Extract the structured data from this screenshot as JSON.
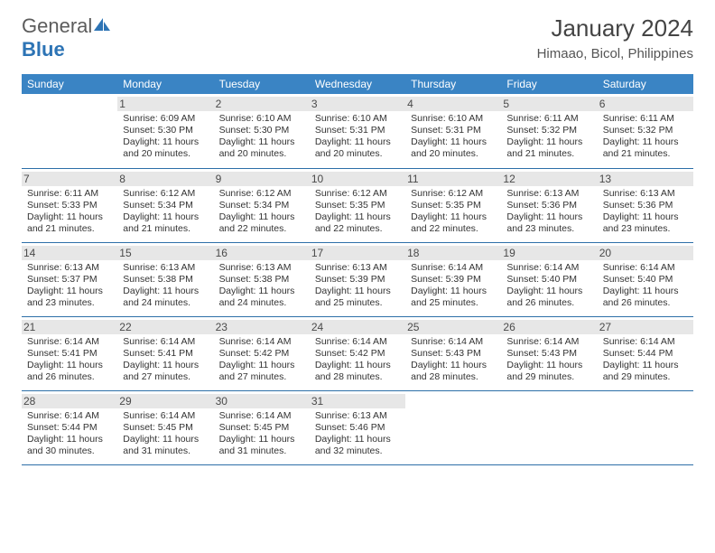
{
  "brand": {
    "word1": "General",
    "word2": "Blue"
  },
  "title": "January 2024",
  "location": "Himaao, Bicol, Philippines",
  "colors": {
    "header_bg": "#3a84c4",
    "header_text": "#ffffff",
    "row_divider": "#2d6fa8",
    "daynum_bg": "#e7e7e7",
    "body_text": "#333333",
    "logo_gray": "#5c5c5c",
    "logo_blue": "#2d74b5"
  },
  "weekdays": [
    "Sunday",
    "Monday",
    "Tuesday",
    "Wednesday",
    "Thursday",
    "Friday",
    "Saturday"
  ],
  "weeks": [
    [
      {
        "n": "",
        "lines": [
          "",
          "",
          "",
          ""
        ]
      },
      {
        "n": "1",
        "lines": [
          "Sunrise: 6:09 AM",
          "Sunset: 5:30 PM",
          "Daylight: 11 hours",
          "and 20 minutes."
        ]
      },
      {
        "n": "2",
        "lines": [
          "Sunrise: 6:10 AM",
          "Sunset: 5:30 PM",
          "Daylight: 11 hours",
          "and 20 minutes."
        ]
      },
      {
        "n": "3",
        "lines": [
          "Sunrise: 6:10 AM",
          "Sunset: 5:31 PM",
          "Daylight: 11 hours",
          "and 20 minutes."
        ]
      },
      {
        "n": "4",
        "lines": [
          "Sunrise: 6:10 AM",
          "Sunset: 5:31 PM",
          "Daylight: 11 hours",
          "and 20 minutes."
        ]
      },
      {
        "n": "5",
        "lines": [
          "Sunrise: 6:11 AM",
          "Sunset: 5:32 PM",
          "Daylight: 11 hours",
          "and 21 minutes."
        ]
      },
      {
        "n": "6",
        "lines": [
          "Sunrise: 6:11 AM",
          "Sunset: 5:32 PM",
          "Daylight: 11 hours",
          "and 21 minutes."
        ]
      }
    ],
    [
      {
        "n": "7",
        "lines": [
          "Sunrise: 6:11 AM",
          "Sunset: 5:33 PM",
          "Daylight: 11 hours",
          "and 21 minutes."
        ]
      },
      {
        "n": "8",
        "lines": [
          "Sunrise: 6:12 AM",
          "Sunset: 5:34 PM",
          "Daylight: 11 hours",
          "and 21 minutes."
        ]
      },
      {
        "n": "9",
        "lines": [
          "Sunrise: 6:12 AM",
          "Sunset: 5:34 PM",
          "Daylight: 11 hours",
          "and 22 minutes."
        ]
      },
      {
        "n": "10",
        "lines": [
          "Sunrise: 6:12 AM",
          "Sunset: 5:35 PM",
          "Daylight: 11 hours",
          "and 22 minutes."
        ]
      },
      {
        "n": "11",
        "lines": [
          "Sunrise: 6:12 AM",
          "Sunset: 5:35 PM",
          "Daylight: 11 hours",
          "and 22 minutes."
        ]
      },
      {
        "n": "12",
        "lines": [
          "Sunrise: 6:13 AM",
          "Sunset: 5:36 PM",
          "Daylight: 11 hours",
          "and 23 minutes."
        ]
      },
      {
        "n": "13",
        "lines": [
          "Sunrise: 6:13 AM",
          "Sunset: 5:36 PM",
          "Daylight: 11 hours",
          "and 23 minutes."
        ]
      }
    ],
    [
      {
        "n": "14",
        "lines": [
          "Sunrise: 6:13 AM",
          "Sunset: 5:37 PM",
          "Daylight: 11 hours",
          "and 23 minutes."
        ]
      },
      {
        "n": "15",
        "lines": [
          "Sunrise: 6:13 AM",
          "Sunset: 5:38 PM",
          "Daylight: 11 hours",
          "and 24 minutes."
        ]
      },
      {
        "n": "16",
        "lines": [
          "Sunrise: 6:13 AM",
          "Sunset: 5:38 PM",
          "Daylight: 11 hours",
          "and 24 minutes."
        ]
      },
      {
        "n": "17",
        "lines": [
          "Sunrise: 6:13 AM",
          "Sunset: 5:39 PM",
          "Daylight: 11 hours",
          "and 25 minutes."
        ]
      },
      {
        "n": "18",
        "lines": [
          "Sunrise: 6:14 AM",
          "Sunset: 5:39 PM",
          "Daylight: 11 hours",
          "and 25 minutes."
        ]
      },
      {
        "n": "19",
        "lines": [
          "Sunrise: 6:14 AM",
          "Sunset: 5:40 PM",
          "Daylight: 11 hours",
          "and 26 minutes."
        ]
      },
      {
        "n": "20",
        "lines": [
          "Sunrise: 6:14 AM",
          "Sunset: 5:40 PM",
          "Daylight: 11 hours",
          "and 26 minutes."
        ]
      }
    ],
    [
      {
        "n": "21",
        "lines": [
          "Sunrise: 6:14 AM",
          "Sunset: 5:41 PM",
          "Daylight: 11 hours",
          "and 26 minutes."
        ]
      },
      {
        "n": "22",
        "lines": [
          "Sunrise: 6:14 AM",
          "Sunset: 5:41 PM",
          "Daylight: 11 hours",
          "and 27 minutes."
        ]
      },
      {
        "n": "23",
        "lines": [
          "Sunrise: 6:14 AM",
          "Sunset: 5:42 PM",
          "Daylight: 11 hours",
          "and 27 minutes."
        ]
      },
      {
        "n": "24",
        "lines": [
          "Sunrise: 6:14 AM",
          "Sunset: 5:42 PM",
          "Daylight: 11 hours",
          "and 28 minutes."
        ]
      },
      {
        "n": "25",
        "lines": [
          "Sunrise: 6:14 AM",
          "Sunset: 5:43 PM",
          "Daylight: 11 hours",
          "and 28 minutes."
        ]
      },
      {
        "n": "26",
        "lines": [
          "Sunrise: 6:14 AM",
          "Sunset: 5:43 PM",
          "Daylight: 11 hours",
          "and 29 minutes."
        ]
      },
      {
        "n": "27",
        "lines": [
          "Sunrise: 6:14 AM",
          "Sunset: 5:44 PM",
          "Daylight: 11 hours",
          "and 29 minutes."
        ]
      }
    ],
    [
      {
        "n": "28",
        "lines": [
          "Sunrise: 6:14 AM",
          "Sunset: 5:44 PM",
          "Daylight: 11 hours",
          "and 30 minutes."
        ]
      },
      {
        "n": "29",
        "lines": [
          "Sunrise: 6:14 AM",
          "Sunset: 5:45 PM",
          "Daylight: 11 hours",
          "and 31 minutes."
        ]
      },
      {
        "n": "30",
        "lines": [
          "Sunrise: 6:14 AM",
          "Sunset: 5:45 PM",
          "Daylight: 11 hours",
          "and 31 minutes."
        ]
      },
      {
        "n": "31",
        "lines": [
          "Sunrise: 6:13 AM",
          "Sunset: 5:46 PM",
          "Daylight: 11 hours",
          "and 32 minutes."
        ]
      },
      {
        "n": "",
        "lines": [
          "",
          "",
          "",
          ""
        ]
      },
      {
        "n": "",
        "lines": [
          "",
          "",
          "",
          ""
        ]
      },
      {
        "n": "",
        "lines": [
          "",
          "",
          "",
          ""
        ]
      }
    ]
  ]
}
